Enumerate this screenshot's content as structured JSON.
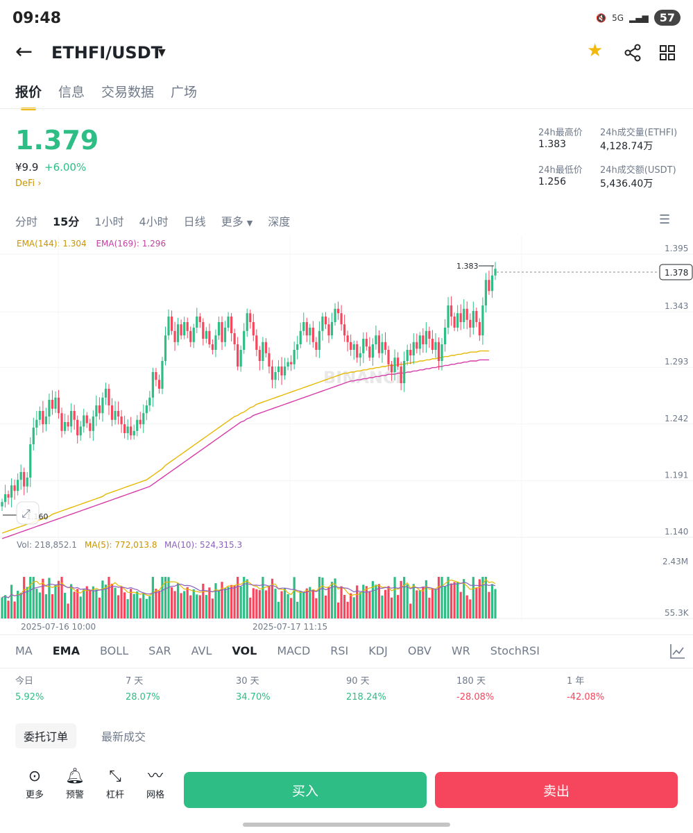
{
  "status_bar": {
    "time": "09:48",
    "network": "5G",
    "battery": "57"
  },
  "header": {
    "pair": "ETHFI/USDT"
  },
  "tabs": [
    "报价",
    "信息",
    "交易数据",
    "广场"
  ],
  "ticker": {
    "price": "1.379",
    "cny": "¥9.9",
    "change": "+6.00%",
    "tag": "DeFi",
    "high_label": "24h最高价",
    "high": "1.383",
    "low_label": "24h最低价",
    "low": "1.256",
    "vol_base_label": "24h成交量(ETHFI)",
    "vol_base": "4,128.74万",
    "vol_quote_label": "24h成交额(USDT)",
    "vol_quote": "5,436.40万"
  },
  "intervals": [
    "分时",
    "15分",
    "1小时",
    "4小时",
    "日线",
    "更多",
    "深度"
  ],
  "chart_legend": {
    "ema144": "EMA(144): 1.304",
    "ema169": "EMA(169): 1.296",
    "vol": "Vol: 218,852.1",
    "ma5": "MA(5): 772,013.8",
    "ma10": "MA(10): 524,315.3"
  },
  "chart_data": {
    "type": "candlestick",
    "y_ticks": [
      "1.395",
      "1.343",
      "1.293",
      "1.242",
      "1.191",
      "1.140"
    ],
    "ylim": [
      1.14,
      1.395
    ],
    "max_label": "1.383",
    "min_label": "1.160",
    "current_price": "1.378",
    "vol_ticks": [
      "2.43M",
      "55.3K"
    ],
    "x_ticks": [
      "2025-07-16 10:00",
      "2025-07-17 11:15"
    ],
    "watermark": "BINANCE",
    "close": [
      1.168,
      1.175,
      1.172,
      1.183,
      1.178,
      1.188,
      1.195,
      1.182,
      1.19,
      1.22,
      1.235,
      1.242,
      1.25,
      1.238,
      1.245,
      1.26,
      1.252,
      1.262,
      1.248,
      1.232,
      1.24,
      1.236,
      1.25,
      1.242,
      1.228,
      1.236,
      1.246,
      1.239,
      1.232,
      1.245,
      1.255,
      1.248,
      1.262,
      1.27,
      1.255,
      1.242,
      1.25,
      1.245,
      1.238,
      1.23,
      1.236,
      1.228,
      1.232,
      1.242,
      1.238,
      1.248,
      1.255,
      1.262,
      1.285,
      1.278,
      1.27,
      1.295,
      1.318,
      1.335,
      1.322,
      1.312,
      1.328,
      1.318,
      1.33,
      1.322,
      1.312,
      1.325,
      1.335,
      1.33,
      1.315,
      1.322,
      1.31,
      1.305,
      1.318,
      1.33,
      1.312,
      1.325,
      1.335,
      1.32,
      1.31,
      1.29,
      1.305,
      1.322,
      1.338,
      1.33,
      1.318,
      1.305,
      1.295,
      1.312,
      1.302,
      1.29,
      1.278,
      1.285,
      1.29,
      1.282,
      1.29,
      1.294,
      1.292,
      1.305,
      1.31,
      1.322,
      1.33,
      1.318,
      1.325,
      1.312,
      1.305,
      1.322,
      1.335,
      1.328,
      1.318,
      1.33,
      1.342,
      1.338,
      1.328,
      1.318,
      1.312,
      1.305,
      1.31,
      1.298,
      1.302,
      1.315,
      1.308,
      1.298,
      1.31,
      1.318,
      1.302,
      1.312,
      1.305,
      1.292,
      1.285,
      1.298,
      1.29,
      1.275,
      1.295,
      1.305,
      1.3,
      1.312,
      1.306,
      1.318,
      1.31,
      1.322,
      1.315,
      1.305,
      1.312,
      1.295,
      1.31,
      1.325,
      1.345,
      1.335,
      1.325,
      1.338,
      1.33,
      1.342,
      1.332,
      1.325,
      1.34,
      1.33,
      1.318,
      1.345,
      1.368,
      1.358,
      1.372,
      1.378
    ],
    "ema144": [
      1.14,
      1.141,
      1.142,
      1.143,
      1.144,
      1.145,
      1.146,
      1.147,
      1.148,
      1.149,
      1.15,
      1.151,
      1.152,
      1.153,
      1.154,
      1.155,
      1.157,
      1.158,
      1.159,
      1.16,
      1.161,
      1.162,
      1.163,
      1.164,
      1.165,
      1.166,
      1.167,
      1.168,
      1.169,
      1.17,
      1.171,
      1.172,
      1.173,
      1.175,
      1.176,
      1.177,
      1.178,
      1.179,
      1.18,
      1.181,
      1.182,
      1.183,
      1.184,
      1.185,
      1.186,
      1.187,
      1.188,
      1.19,
      1.192,
      1.194,
      1.196,
      1.198,
      1.201,
      1.203,
      1.205,
      1.207,
      1.209,
      1.211,
      1.213,
      1.215,
      1.217,
      1.219,
      1.221,
      1.223,
      1.225,
      1.227,
      1.229,
      1.231,
      1.233,
      1.235,
      1.237,
      1.239,
      1.241,
      1.243,
      1.245,
      1.246,
      1.248,
      1.249,
      1.251,
      1.253,
      1.254,
      1.256,
      1.257,
      1.258,
      1.259,
      1.26,
      1.261,
      1.262,
      1.263,
      1.264,
      1.265,
      1.266,
      1.267,
      1.268,
      1.269,
      1.27,
      1.271,
      1.272,
      1.273,
      1.274,
      1.275,
      1.276,
      1.277,
      1.278,
      1.279,
      1.28,
      1.281,
      1.282,
      1.283,
      1.284,
      1.284,
      1.285,
      1.285,
      1.286,
      1.286,
      1.287,
      1.287,
      1.288,
      1.288,
      1.289,
      1.289,
      1.29,
      1.29,
      1.291,
      1.291,
      1.291,
      1.292,
      1.292,
      1.292,
      1.293,
      1.293,
      1.294,
      1.294,
      1.295,
      1.295,
      1.296,
      1.296,
      1.297,
      1.297,
      1.298,
      1.298,
      1.299,
      1.299,
      1.3,
      1.3,
      1.301,
      1.301,
      1.302,
      1.302,
      1.303,
      1.303,
      1.303,
      1.304,
      1.304,
      1.304,
      1.304
    ],
    "ema169": [
      1.135,
      1.136,
      1.137,
      1.138,
      1.139,
      1.14,
      1.141,
      1.142,
      1.143,
      1.144,
      1.145,
      1.146,
      1.147,
      1.148,
      1.149,
      1.15,
      1.151,
      1.152,
      1.153,
      1.154,
      1.155,
      1.156,
      1.157,
      1.158,
      1.159,
      1.16,
      1.161,
      1.162,
      1.163,
      1.164,
      1.165,
      1.166,
      1.167,
      1.168,
      1.169,
      1.17,
      1.171,
      1.172,
      1.173,
      1.174,
      1.175,
      1.176,
      1.177,
      1.178,
      1.179,
      1.18,
      1.181,
      1.182,
      1.184,
      1.186,
      1.188,
      1.19,
      1.192,
      1.194,
      1.196,
      1.198,
      1.2,
      1.202,
      1.204,
      1.206,
      1.208,
      1.21,
      1.212,
      1.214,
      1.216,
      1.218,
      1.22,
      1.222,
      1.224,
      1.226,
      1.228,
      1.23,
      1.232,
      1.234,
      1.236,
      1.238,
      1.24,
      1.241,
      1.243,
      1.244,
      1.246,
      1.247,
      1.248,
      1.249,
      1.25,
      1.251,
      1.252,
      1.253,
      1.254,
      1.255,
      1.256,
      1.257,
      1.258,
      1.259,
      1.26,
      1.261,
      1.262,
      1.263,
      1.264,
      1.265,
      1.266,
      1.267,
      1.268,
      1.269,
      1.27,
      1.271,
      1.272,
      1.273,
      1.274,
      1.275,
      1.276,
      1.277,
      1.277,
      1.278,
      1.278,
      1.279,
      1.279,
      1.28,
      1.28,
      1.281,
      1.281,
      1.282,
      1.282,
      1.283,
      1.283,
      1.283,
      1.284,
      1.284,
      1.284,
      1.285,
      1.285,
      1.286,
      1.286,
      1.287,
      1.287,
      1.288,
      1.288,
      1.289,
      1.289,
      1.29,
      1.29,
      1.291,
      1.291,
      1.292,
      1.292,
      1.293,
      1.293,
      1.294,
      1.294,
      1.295,
      1.295,
      1.295,
      1.296,
      1.296,
      1.296,
      1.296
    ]
  },
  "indicators": [
    "MA",
    "EMA",
    "BOLL",
    "SAR",
    "AVL",
    "VOL",
    "MACD",
    "RSI",
    "KDJ",
    "OBV",
    "WR",
    "StochRSI"
  ],
  "performance": [
    {
      "label": "今日",
      "value": "5.92%",
      "dir": "up"
    },
    {
      "label": "7 天",
      "value": "28.07%",
      "dir": "up"
    },
    {
      "label": "30 天",
      "value": "34.70%",
      "dir": "up"
    },
    {
      "label": "90 天",
      "value": "218.24%",
      "dir": "up"
    },
    {
      "label": "180 天",
      "value": "-28.08%",
      "dir": "down"
    },
    {
      "label": "1 年",
      "value": "-42.08%",
      "dir": "down"
    }
  ],
  "order_tabs": [
    "委托订单",
    "最新成交"
  ],
  "bottom_bar": {
    "more": "更多",
    "alert": "预警",
    "leverage": "杠杆",
    "grid": "网格",
    "buy": "买入",
    "sell": "卖出"
  },
  "colors": {
    "up": "#2ebd85",
    "down": "#f6465d",
    "ema144": "#e6b800",
    "ema169": "#d63aa8",
    "brand": "#f0b90b"
  }
}
